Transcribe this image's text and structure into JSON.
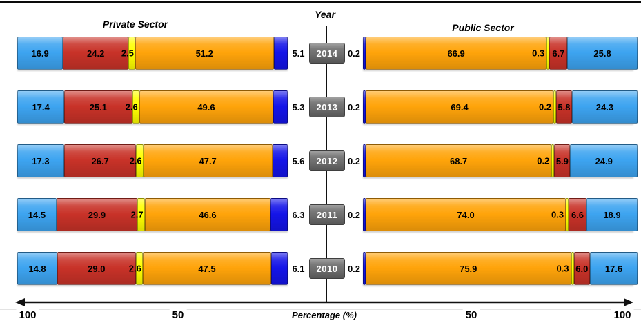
{
  "chart_data": {
    "type": "bar",
    "subtype": "diverging-stacked-horizontal",
    "titles": {
      "left": "Private Sector",
      "center": "Year",
      "right": "Public Sector"
    },
    "xlabel": "Percentage (%)",
    "axis_tick_labels": [
      "100",
      "50",
      "50",
      "100"
    ],
    "axis_range_each_side": [
      0,
      100
    ],
    "grid": false,
    "legend": "none",
    "segment_colors": {
      "lightblue": "#3da4f0",
      "red": "#c83228",
      "yellow": "#ffff00",
      "orange": "#ffa40a",
      "darkblue": "#1414e8"
    },
    "segment_order_private": [
      "lightblue",
      "red",
      "yellow",
      "orange",
      "darkblue"
    ],
    "segment_order_public": [
      "darkblue",
      "orange",
      "yellow",
      "red",
      "lightblue"
    ],
    "rows": [
      {
        "year": "2014",
        "private": {
          "lightblue": "16.9",
          "red": "24.2",
          "yellow": "2.5",
          "orange": "51.2",
          "darkblue": "5.1"
        },
        "public": {
          "darkblue": "0.2",
          "orange": "66.9",
          "yellow": "0.3",
          "red": "6.7",
          "lightblue": "25.8"
        }
      },
      {
        "year": "2013",
        "private": {
          "lightblue": "17.4",
          "red": "25.1",
          "yellow": "2.6",
          "orange": "49.6",
          "darkblue": "5.3"
        },
        "public": {
          "darkblue": "0.2",
          "orange": "69.4",
          "yellow": "0.2",
          "red": "5.8",
          "lightblue": "24.3"
        }
      },
      {
        "year": "2012",
        "private": {
          "lightblue": "17.3",
          "red": "26.7",
          "yellow": "2.6",
          "orange": "47.7",
          "darkblue": "5.6"
        },
        "public": {
          "darkblue": "0.2",
          "orange": "68.7",
          "yellow": "0.2",
          "red": "5.9",
          "lightblue": "24.9"
        }
      },
      {
        "year": "2011",
        "private": {
          "lightblue": "14.5",
          "red": "29.9",
          "yellow": "2.7",
          "orange": "46.6",
          "darkblue": "6.3"
        },
        "public": {
          "darkblue": "0.2",
          "orange": "74.0",
          "yellow": "0.3",
          "red": "6.6",
          "lightblue": "18.9"
        }
      },
      {
        "year": "2010",
        "private": {
          "lightblue": "14.8",
          "red": "29.0",
          "yellow": "2.6",
          "orange": "47.5",
          "darkblue": "6.1"
        },
        "public": {
          "darkblue": "0.2",
          "orange": "75.9",
          "yellow": "0.3",
          "red": "6.0",
          "lightblue": "17.6"
        }
      }
    ]
  }
}
